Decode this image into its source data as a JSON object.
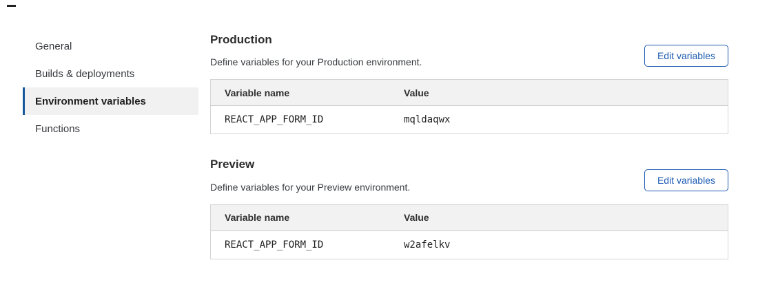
{
  "accent": {
    "button_blue": "#1d5bb2",
    "indicator_blue": "#16579c",
    "header_bg": "#f2f2f2",
    "table_border": "#d4d4d4"
  },
  "sidebar": {
    "items": [
      {
        "label": "General",
        "selected": false
      },
      {
        "label": "Builds & deployments",
        "selected": false
      },
      {
        "label": "Environment variables",
        "selected": true
      },
      {
        "label": "Functions",
        "selected": false
      }
    ]
  },
  "sections": [
    {
      "title": "Production",
      "description": "Define variables for your Production environment.",
      "button_label": "Edit variables",
      "table": {
        "columns": [
          "Variable name",
          "Value"
        ],
        "rows": [
          {
            "name": "REACT_APP_FORM_ID",
            "value": "mqldaqwx"
          }
        ]
      }
    },
    {
      "title": "Preview",
      "description": "Define variables for your Preview environment.",
      "button_label": "Edit variables",
      "table": {
        "columns": [
          "Variable name",
          "Value"
        ],
        "rows": [
          {
            "name": "REACT_APP_FORM_ID",
            "value": "w2afelkv"
          }
        ]
      }
    }
  ]
}
